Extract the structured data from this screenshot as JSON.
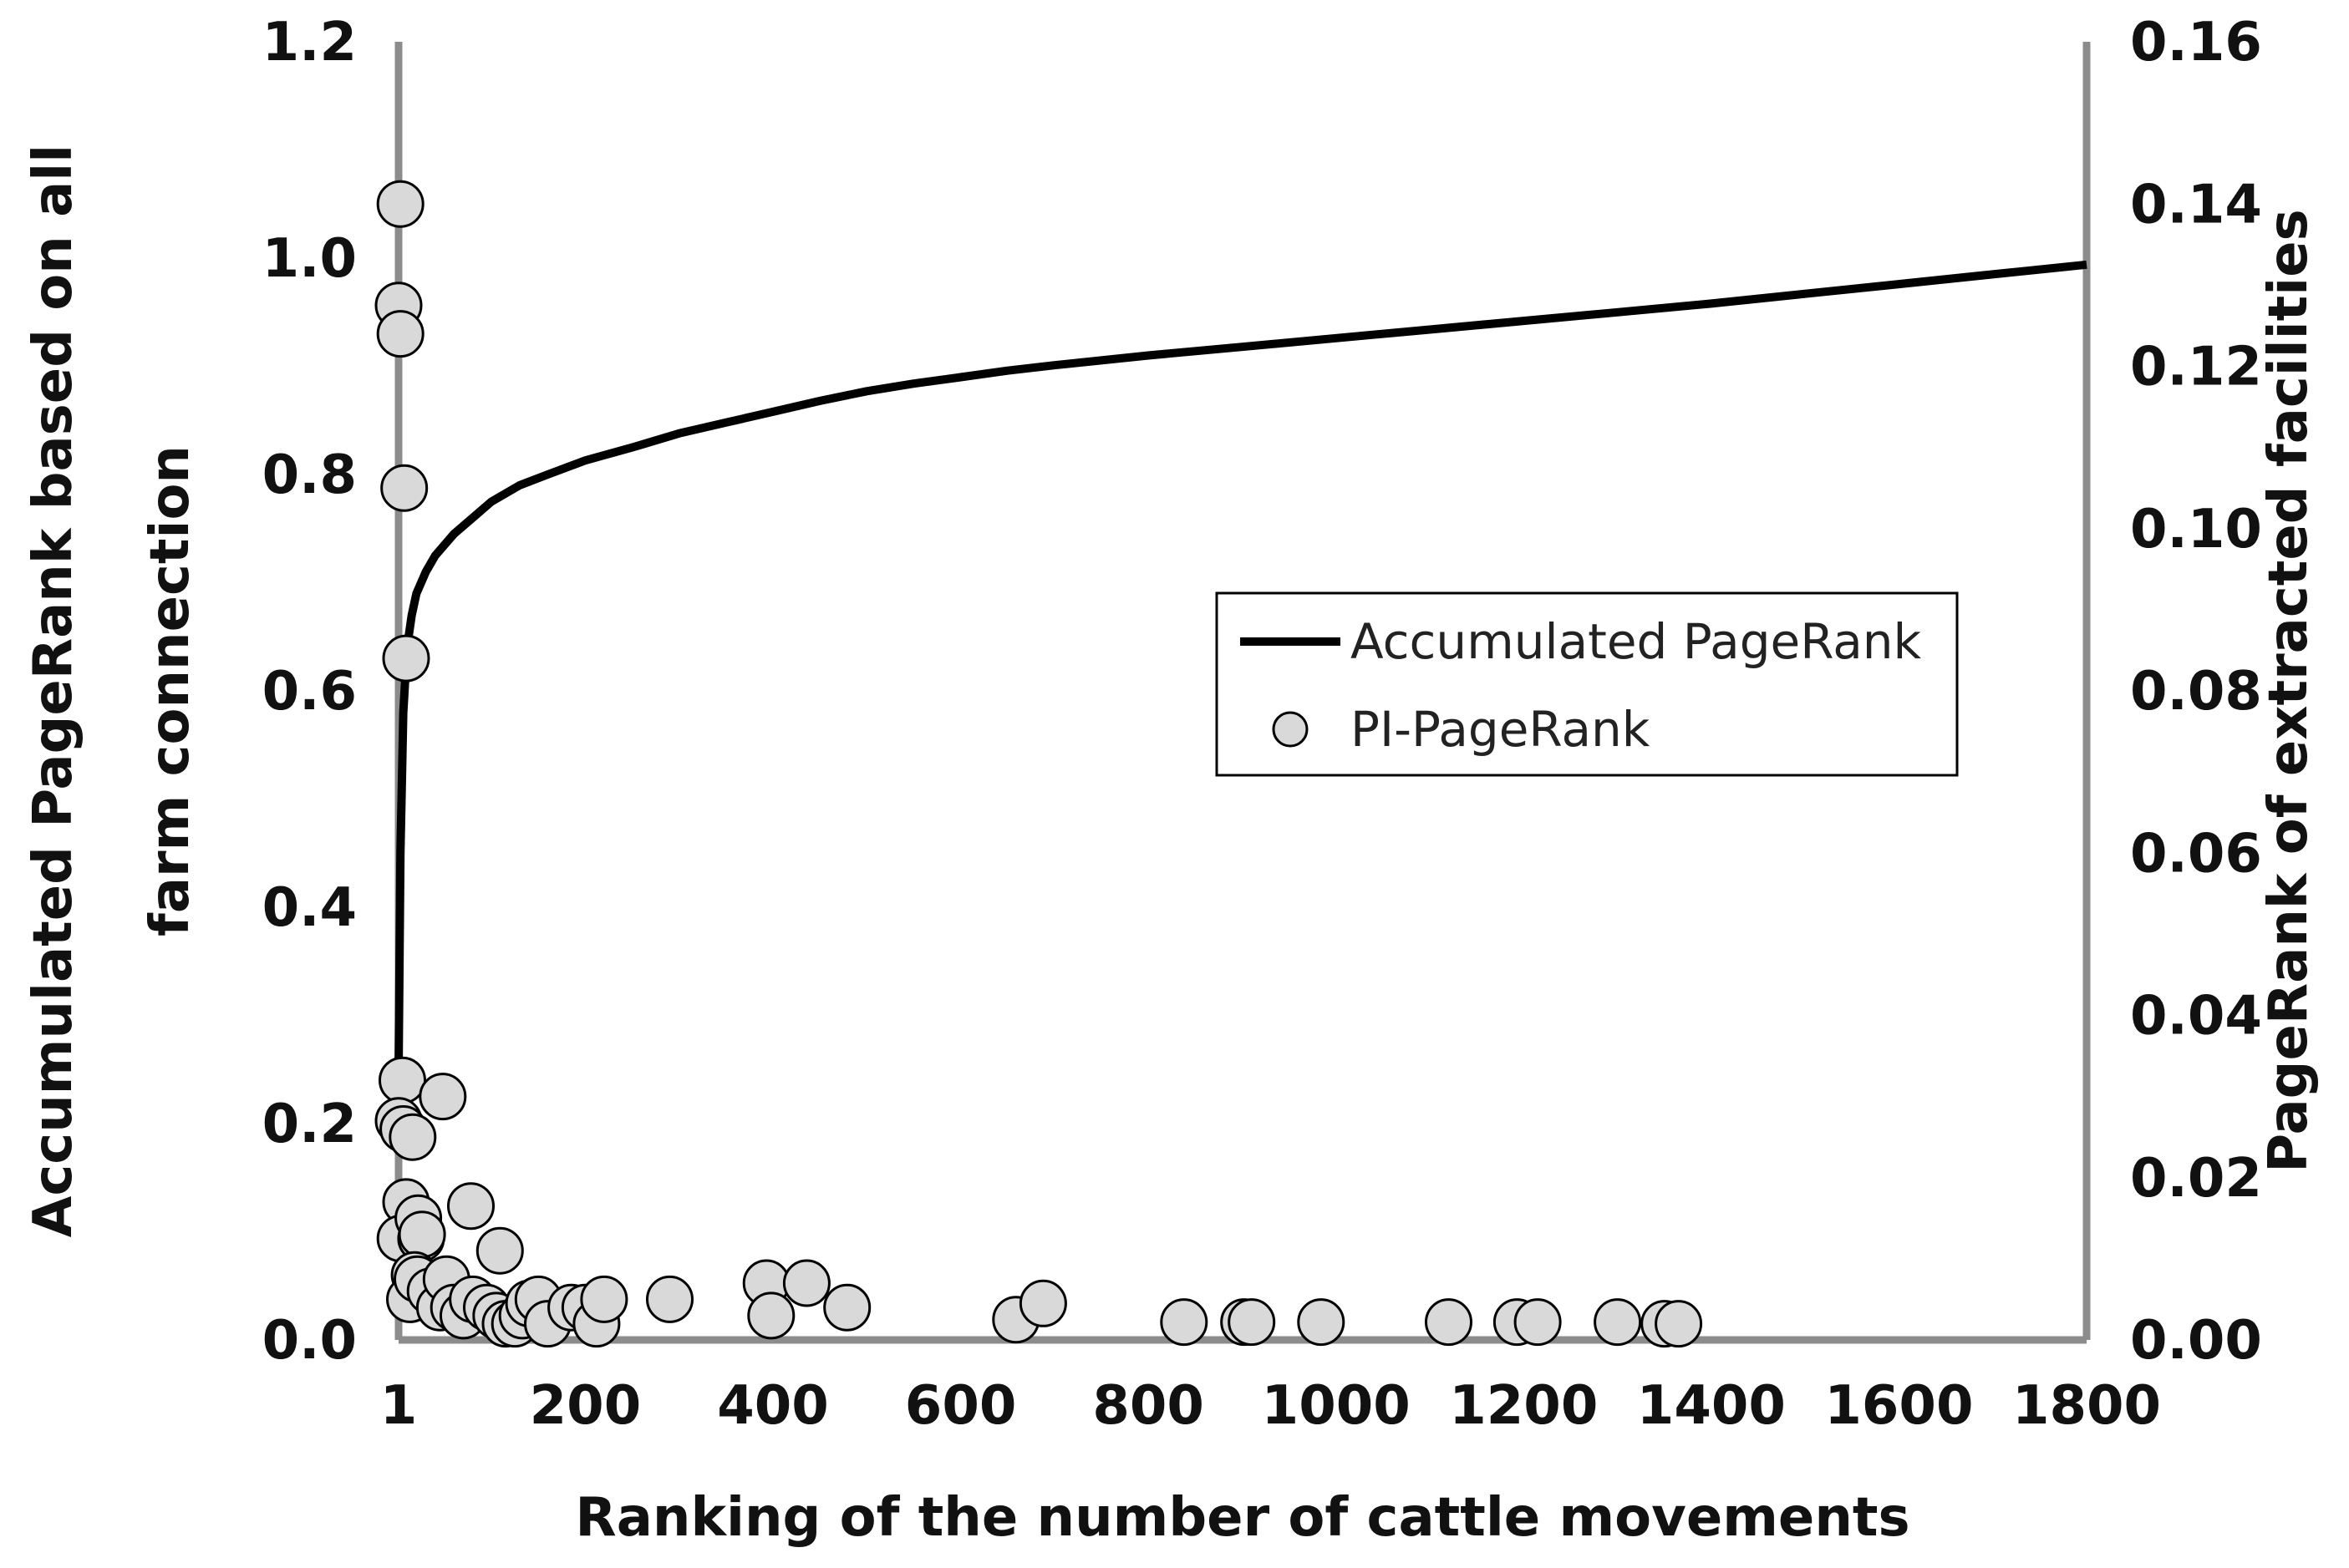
{
  "chart_data": {
    "type": "scatter",
    "xlabel": "Ranking of the number of cattle movements",
    "ylabel_left_lines": [
      "Accumulated PageRank based on all",
      "farm connection"
    ],
    "ylabel_right": "PageRank of extracted facilities",
    "x_ticks": [
      "1",
      "200",
      "400",
      "600",
      "800",
      "1000",
      "1200",
      "1400",
      "1600",
      "1800"
    ],
    "x_tick_values": [
      1,
      200,
      400,
      600,
      800,
      1000,
      1200,
      1400,
      1600,
      1800
    ],
    "xlim": [
      1,
      1800
    ],
    "y_left_ticks": [
      "0.0",
      "0.2",
      "0.4",
      "0.6",
      "0.8",
      "1.0",
      "1.2"
    ],
    "y_left_tick_values": [
      0,
      0.2,
      0.4,
      0.6,
      0.8,
      1.0,
      1.2
    ],
    "ylim_left": [
      0,
      1.2
    ],
    "y_right_ticks": [
      "0.00",
      "0.02",
      "0.04",
      "0.06",
      "0.08",
      "0.10",
      "0.12",
      "0.14",
      "0.16"
    ],
    "y_right_tick_values": [
      0,
      0.02,
      0.04,
      0.06,
      0.08,
      0.1,
      0.12,
      0.14,
      0.16
    ],
    "ylim_right": [
      0,
      0.16
    ],
    "grid": false,
    "legend": {
      "position": "center-right",
      "entries": [
        "Accumulated PageRank",
        "PI-PageRank"
      ]
    },
    "colors": {
      "line": "#000000",
      "marker_fill": "#d9d9d9",
      "marker_stroke": "#000000",
      "axis": "#8c8c8c"
    },
    "series": [
      {
        "name": "Accumulated PageRank",
        "axis": "left",
        "kind": "line",
        "points": [
          [
            1,
            0.25
          ],
          [
            3,
            0.45
          ],
          [
            6,
            0.58
          ],
          [
            10,
            0.64
          ],
          [
            15,
            0.67
          ],
          [
            20,
            0.69
          ],
          [
            30,
            0.71
          ],
          [
            40,
            0.725
          ],
          [
            60,
            0.745
          ],
          [
            80,
            0.76
          ],
          [
            100,
            0.775
          ],
          [
            130,
            0.79
          ],
          [
            160,
            0.8
          ],
          [
            200,
            0.813
          ],
          [
            250,
            0.825
          ],
          [
            300,
            0.838
          ],
          [
            350,
            0.848
          ],
          [
            400,
            0.858
          ],
          [
            450,
            0.868
          ],
          [
            500,
            0.877
          ],
          [
            550,
            0.884
          ],
          [
            600,
            0.89
          ],
          [
            650,
            0.896
          ],
          [
            700,
            0.901
          ],
          [
            800,
            0.91
          ],
          [
            900,
            0.918
          ],
          [
            1000,
            0.926
          ],
          [
            1100,
            0.934
          ],
          [
            1200,
            0.942
          ],
          [
            1300,
            0.95
          ],
          [
            1400,
            0.958
          ],
          [
            1500,
            0.967
          ],
          [
            1600,
            0.976
          ],
          [
            1700,
            0.985
          ],
          [
            1800,
            0.994
          ]
        ]
      },
      {
        "name": "PI-PageRank",
        "axis": "right",
        "kind": "scatter",
        "points": [
          [
            3,
            0.14
          ],
          [
            1,
            0.1275
          ],
          [
            3,
            0.124
          ],
          [
            7,
            0.105
          ],
          [
            9,
            0.084
          ],
          [
            5,
            0.032
          ],
          [
            1,
            0.027
          ],
          [
            6,
            0.026
          ],
          [
            16,
            0.025
          ],
          [
            48,
            0.03
          ],
          [
            9,
            0.017
          ],
          [
            3,
            0.0125
          ],
          [
            22,
            0.015
          ],
          [
            25,
            0.0125
          ],
          [
            26,
            0.013
          ],
          [
            78,
            0.0165
          ],
          [
            109,
            0.011
          ],
          [
            18,
            0.008
          ],
          [
            13,
            0.005
          ],
          [
            21,
            0.0075
          ],
          [
            35,
            0.006
          ],
          [
            45,
            0.004
          ],
          [
            52,
            0.0075
          ],
          [
            60,
            0.004
          ],
          [
            70,
            0.003
          ],
          [
            80,
            0.005
          ],
          [
            95,
            0.004
          ],
          [
            105,
            0.003
          ],
          [
            115,
            0.002
          ],
          [
            125,
            0.002
          ],
          [
            133,
            0.003
          ],
          [
            140,
            0.0045
          ],
          [
            150,
            0.005
          ],
          [
            160,
            0.002
          ],
          [
            185,
            0.004
          ],
          [
            200,
            0.004
          ],
          [
            212,
            0.002
          ],
          [
            220,
            0.005
          ],
          [
            290,
            0.005
          ],
          [
            393,
            0.007
          ],
          [
            398,
            0.003
          ],
          [
            436,
            0.007
          ],
          [
            479,
            0.004
          ],
          [
            659,
            0.0025
          ],
          [
            688,
            0.0045
          ],
          [
            838,
            0.0022
          ],
          [
            902,
            0.0022
          ],
          [
            910,
            0.0022
          ],
          [
            984,
            0.0022
          ],
          [
            1120,
            0.0022
          ],
          [
            1193,
            0.0022
          ],
          [
            1215,
            0.0022
          ],
          [
            1300,
            0.0022
          ],
          [
            1350,
            0.002
          ],
          [
            1365,
            0.002
          ]
        ]
      }
    ]
  }
}
